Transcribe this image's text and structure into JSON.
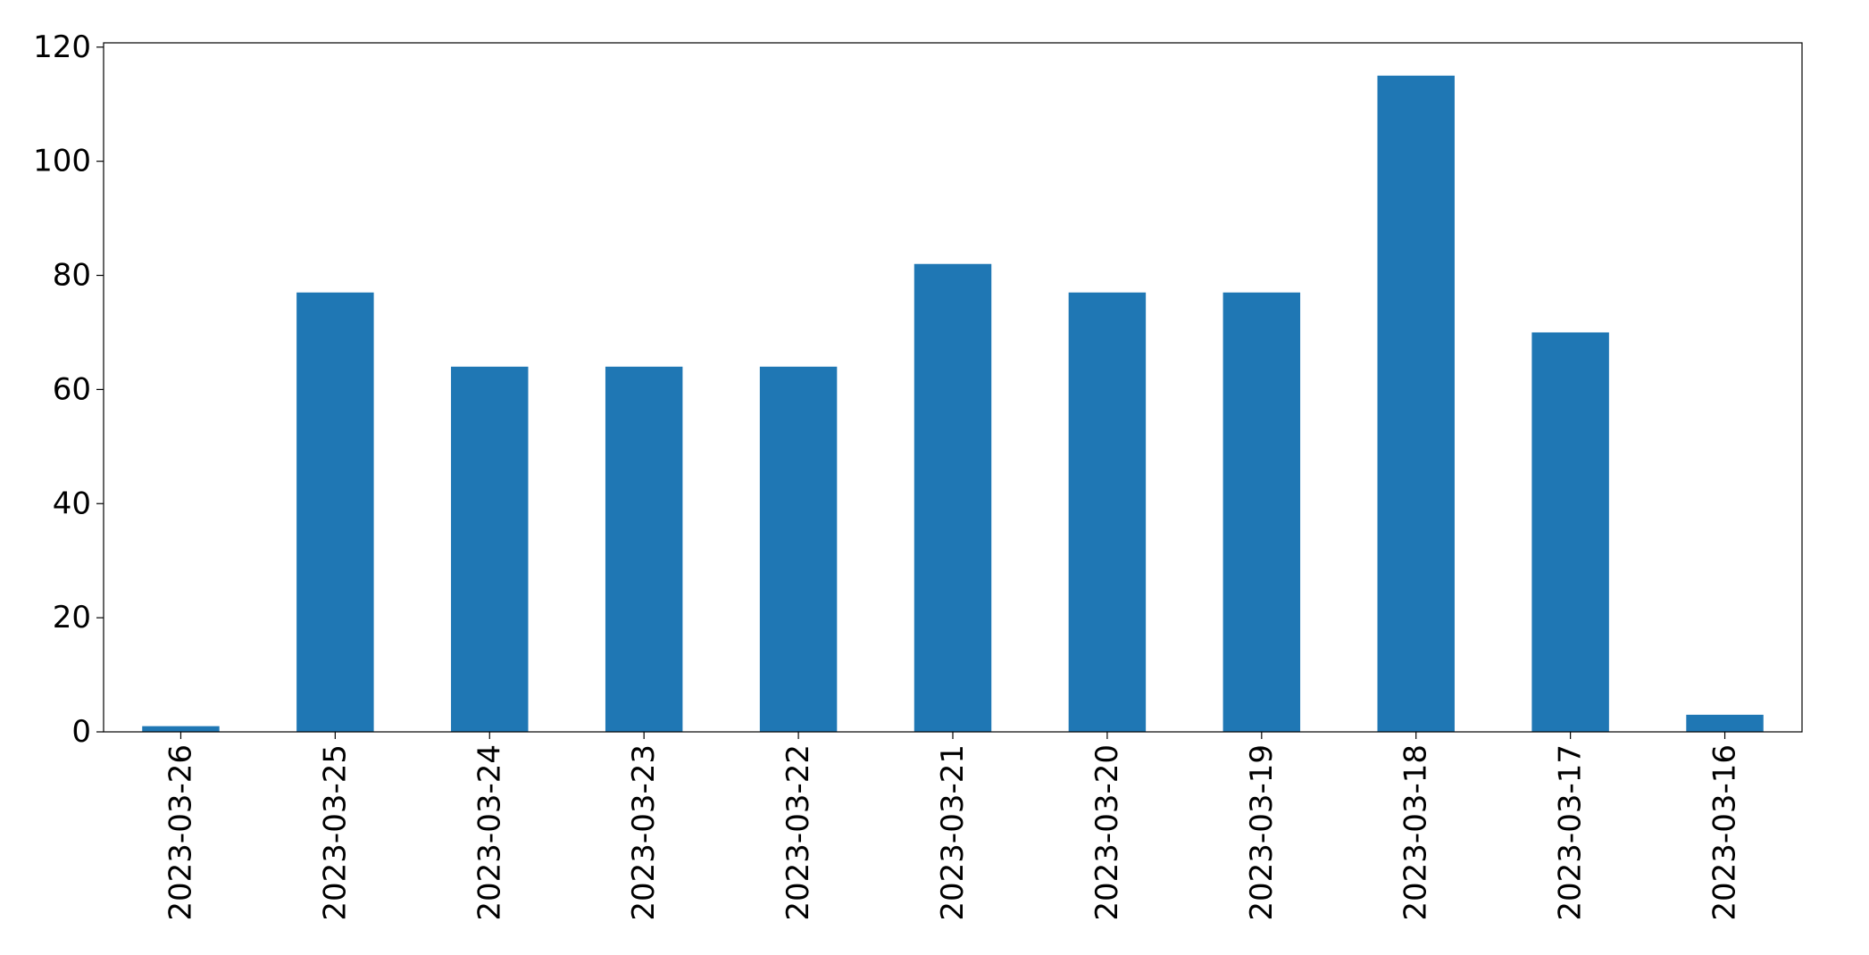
{
  "chart_data": {
    "type": "bar",
    "title": "",
    "xlabel": "",
    "ylabel": "",
    "categories": [
      "2023-03-26",
      "2023-03-25",
      "2023-03-24",
      "2023-03-23",
      "2023-03-22",
      "2023-03-21",
      "2023-03-20",
      "2023-03-19",
      "2023-03-18",
      "2023-03-17",
      "2023-03-16"
    ],
    "values": [
      1,
      77,
      64,
      64,
      64,
      82,
      77,
      77,
      115,
      70,
      3
    ],
    "ylim": [
      0,
      120.75
    ],
    "yticks": [
      0,
      20,
      40,
      60,
      80,
      100,
      120
    ],
    "bar_color": "#1f77b4",
    "grid": false,
    "legend": false,
    "x_tick_rotation": "vertical"
  }
}
